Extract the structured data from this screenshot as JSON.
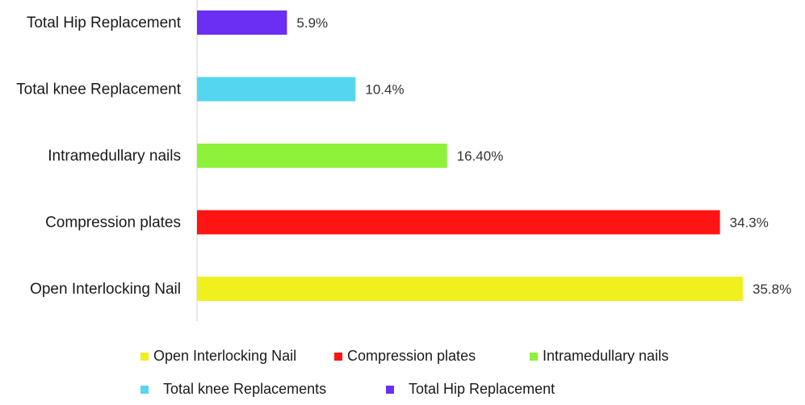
{
  "chart_data": {
    "type": "bar",
    "orientation": "horizontal",
    "categories": [
      "Total Hip Replacement",
      "Total knee Replacement",
      "Intramedullary nails",
      "Compression plates",
      "Open Interlocking Nail"
    ],
    "values": [
      5.9,
      10.4,
      16.4,
      34.3,
      35.8
    ],
    "value_labels": [
      "5.9%",
      "10.4%",
      "16.40%",
      "34.3%",
      "35.8%"
    ],
    "colors": [
      "#6a2ff2",
      "#55d6f0",
      "#8ef23b",
      "#ff1414",
      "#f0f01e"
    ],
    "xlim": [
      0,
      35.8
    ],
    "grid": false,
    "legend_position": "bottom",
    "legend": [
      {
        "label": "Open Interlocking Nail",
        "color": "#f0f01e"
      },
      {
        "label": "Compression plates",
        "color": "#ff1414"
      },
      {
        "label": "Intramedullary nails",
        "color": "#8ef23b"
      },
      {
        "label": "Total knee Replacements",
        "color": "#55d6f0"
      },
      {
        "label": "Total Hip Replacement",
        "color": "#6a2ff2"
      }
    ]
  }
}
